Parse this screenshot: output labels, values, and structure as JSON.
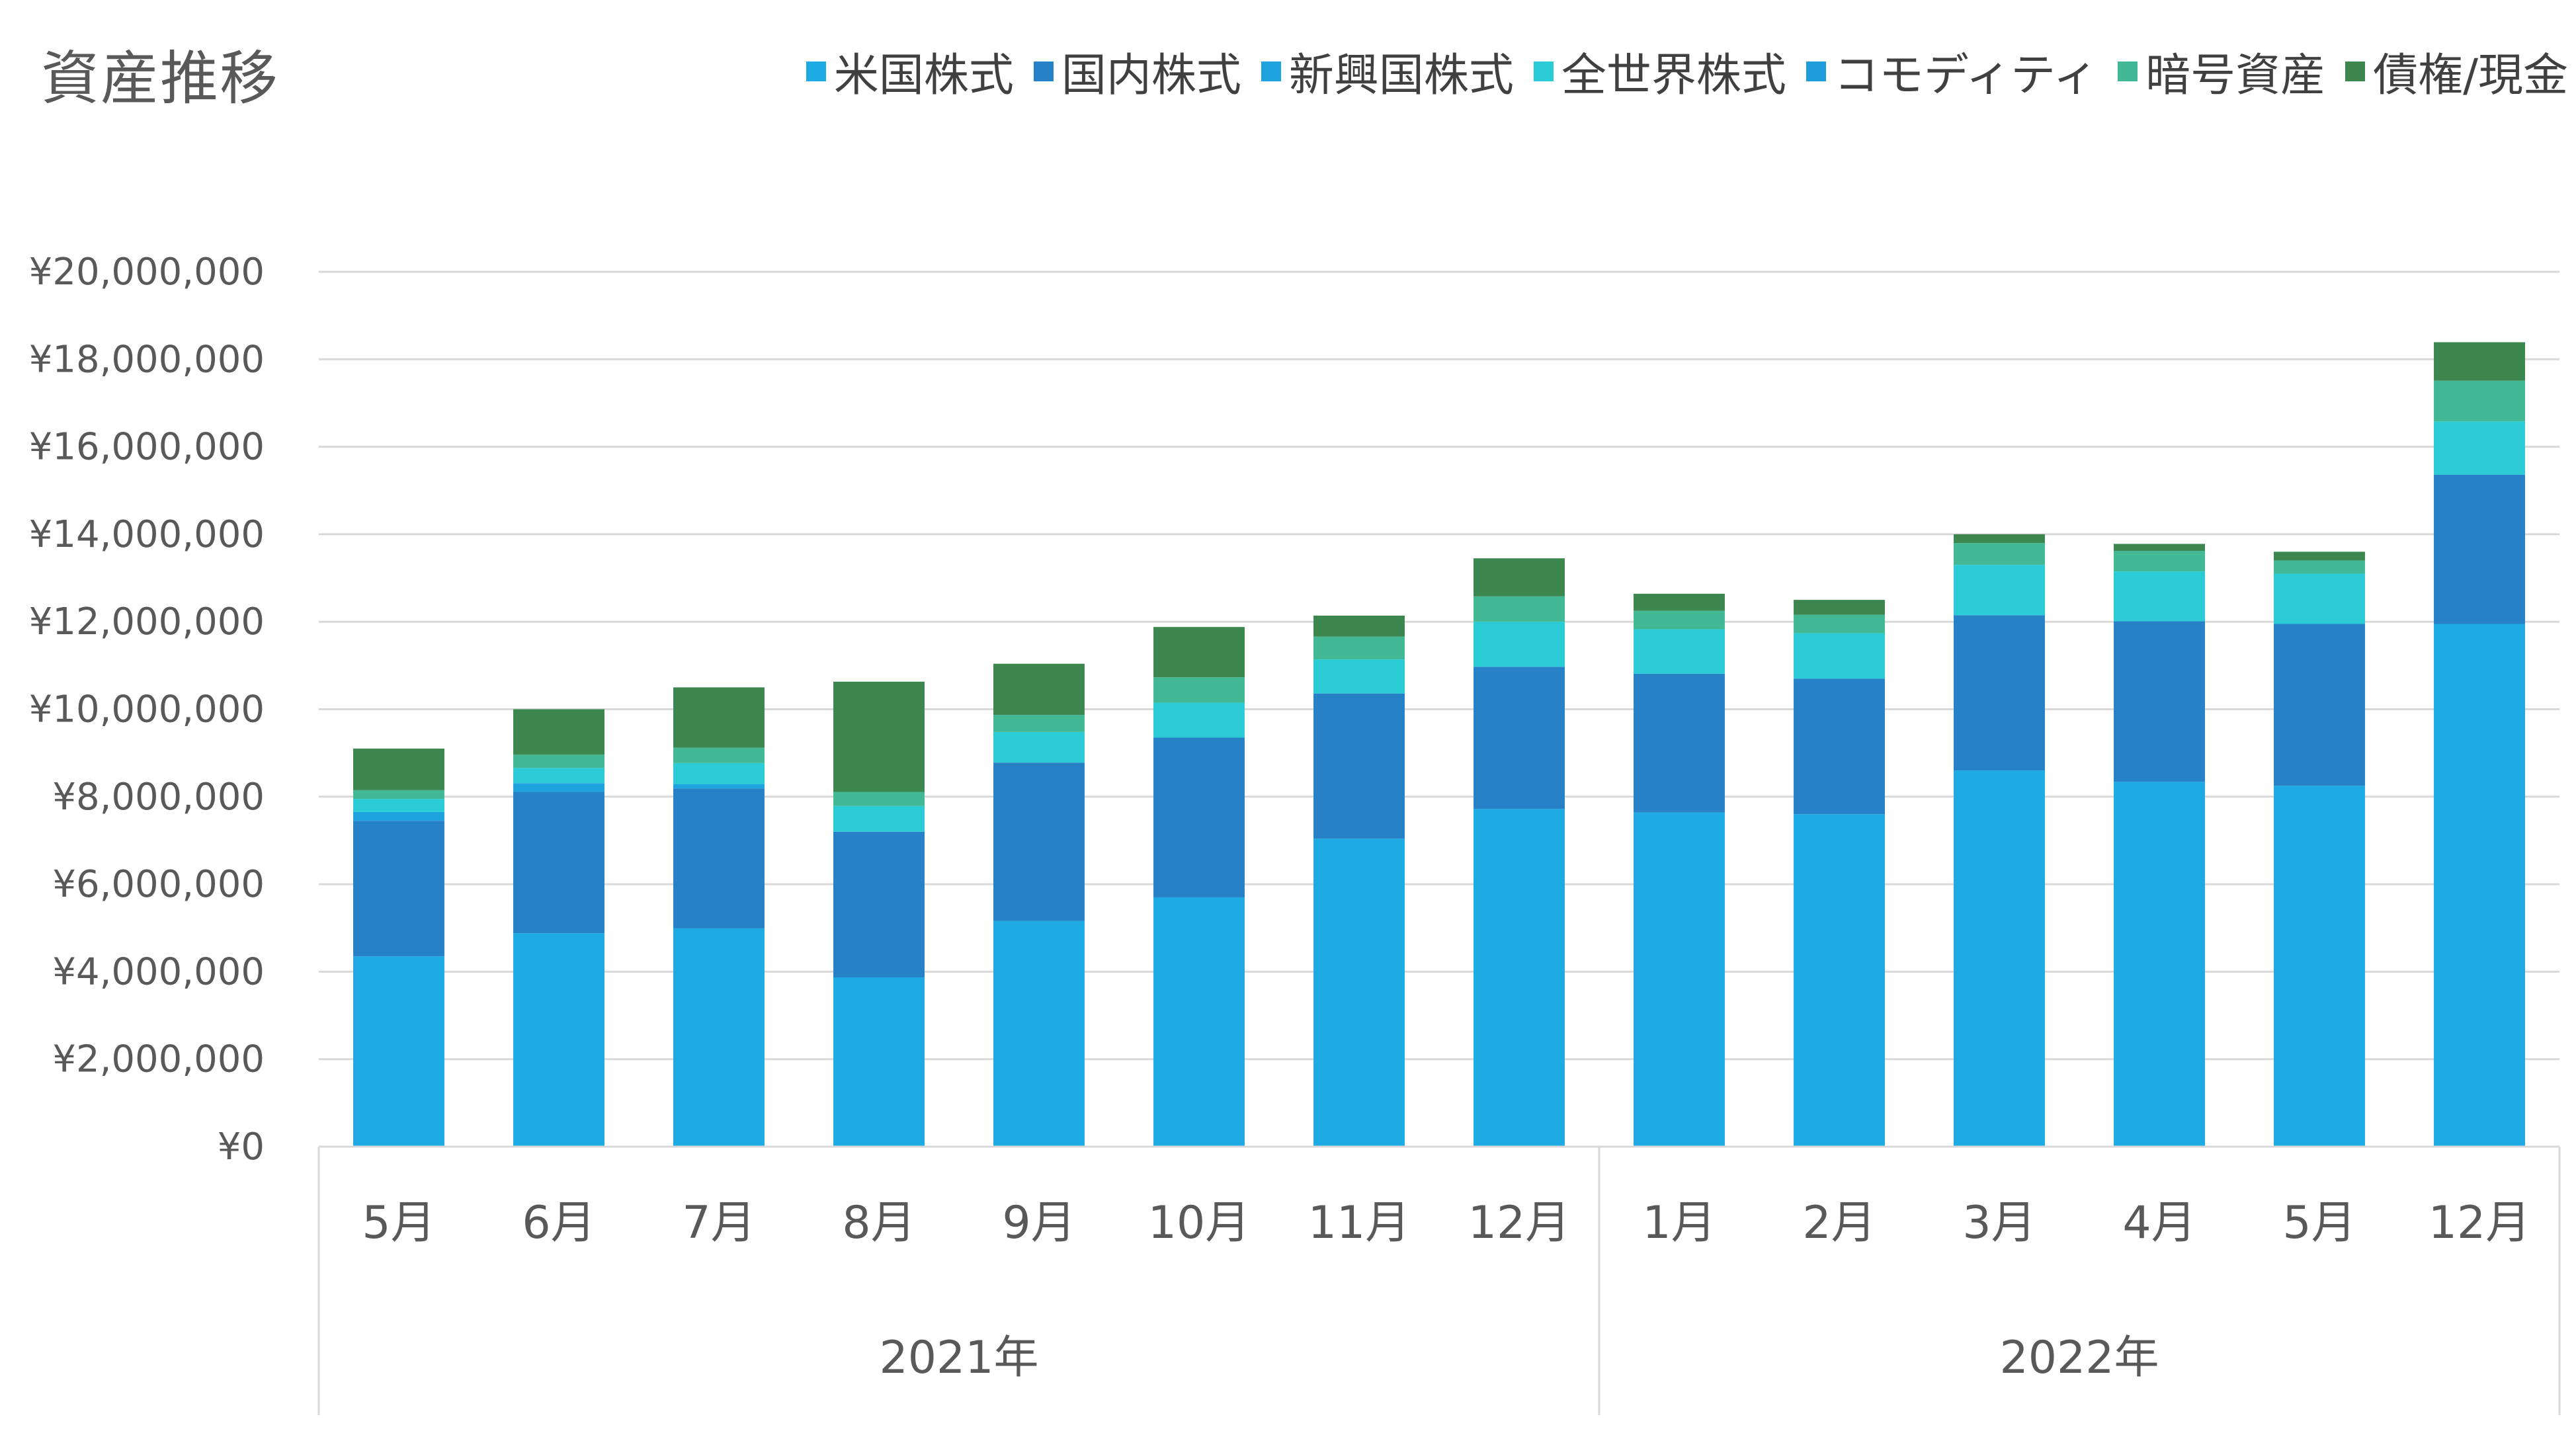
{
  "chart_data": {
    "type": "bar",
    "stacked": true,
    "title": "資産推移",
    "categories": [
      "5月",
      "6月",
      "7月",
      "8月",
      "9月",
      "10月",
      "11月",
      "12月",
      "1月",
      "2月",
      "3月",
      "4月",
      "5月",
      "12月"
    ],
    "groups": [
      {
        "label": "2021年",
        "count": 8
      },
      {
        "label": "2022年",
        "count": 6
      }
    ],
    "ylim": [
      0,
      20000000
    ],
    "yticks": [
      "¥0",
      "¥2,000,000",
      "¥4,000,000",
      "¥6,000,000",
      "¥8,000,000",
      "¥10,000,000",
      "¥12,000,000",
      "¥14,000,000",
      "¥16,000,000",
      "¥18,000,000",
      "¥20,000,000"
    ],
    "grid": true,
    "legend_position": "top-right",
    "series": [
      {
        "name": "米国株式",
        "color": "#1EABE3",
        "values": [
          4350000,
          4880000,
          4990000,
          3870000,
          5160000,
          5700000,
          7040000,
          7720000,
          7640000,
          7600000,
          8600000,
          8340000,
          8250000,
          11950000
        ]
      },
      {
        "name": "国内株式",
        "color": "#2781C6",
        "values": [
          3100000,
          3230000,
          3200000,
          3330000,
          3620000,
          3650000,
          3320000,
          3250000,
          3170000,
          3100000,
          3550000,
          3670000,
          3700000,
          3410000
        ]
      },
      {
        "name": "新興国株式",
        "color": "#1FA3DE",
        "values": [
          200000,
          200000,
          100000,
          0,
          0,
          0,
          0,
          0,
          0,
          0,
          0,
          0,
          0,
          0
        ]
      },
      {
        "name": "全世界株式",
        "color": "#2BCCD6",
        "values": [
          300000,
          350000,
          480000,
          590000,
          700000,
          800000,
          780000,
          1030000,
          1020000,
          1040000,
          1150000,
          1140000,
          1150000,
          1220000
        ]
      },
      {
        "name": "コモディティ",
        "color": "#1D9DDB",
        "values": [
          0,
          0,
          0,
          0,
          0,
          0,
          0,
          0,
          0,
          0,
          0,
          0,
          0,
          0
        ]
      },
      {
        "name": "暗号資産",
        "color": "#43B894",
        "values": [
          200000,
          300000,
          350000,
          320000,
          390000,
          580000,
          520000,
          580000,
          420000,
          420000,
          500000,
          470000,
          300000,
          930000
        ]
      },
      {
        "name": "債権/現金",
        "color": "#3C8750",
        "values": [
          950000,
          1040000,
          1380000,
          2520000,
          1170000,
          1150000,
          480000,
          870000,
          390000,
          340000,
          200000,
          160000,
          200000,
          880000
        ]
      }
    ]
  }
}
